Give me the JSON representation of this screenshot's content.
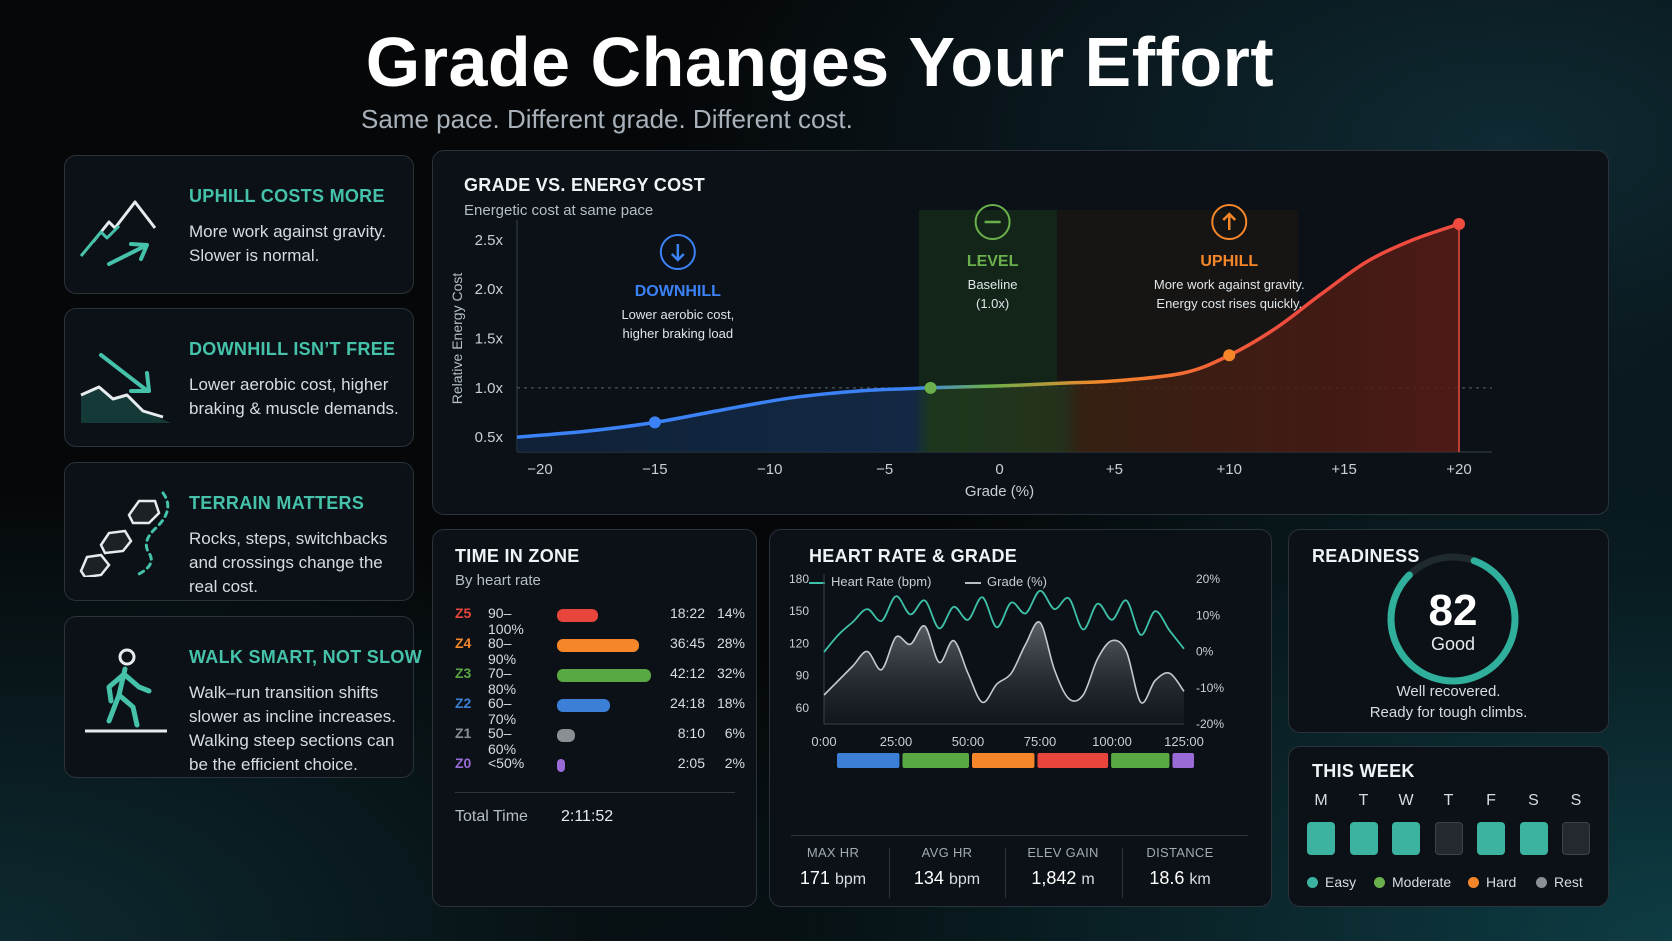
{
  "header": {
    "title": "Grade Changes Your Effort",
    "subtitle": "Same pace. Different grade. Different cost."
  },
  "tips": [
    {
      "icon": "mountain-uphill-icon",
      "title": "UPHILL COSTS MORE",
      "body": "More work against gravity. Slower is normal."
    },
    {
      "icon": "downhill-slope-icon",
      "title": "DOWNHILL ISN’T FREE",
      "body": "Lower aerobic cost, higher braking & muscle demands."
    },
    {
      "icon": "rocks-path-icon",
      "title": "TERRAIN MATTERS",
      "body": "Rocks, steps, switchbacks and crossings change the real cost."
    },
    {
      "icon": "walking-person-icon",
      "title": "WALK SMART, NOT SLOW",
      "body": "Walk–run transition shifts slower as incline increases. Walking steep sections can be the efficient choice."
    }
  ],
  "colors": {
    "accent": "#45c2a9",
    "downhill": "#3b82f6",
    "level": "#6ab04c",
    "uphill": "#f5872a",
    "steep": "#ef4b3f"
  },
  "chart_data": [
    {
      "type": "line",
      "title": "GRADE VS. ENERGY COST",
      "subtitle": "Energetic cost at same pace",
      "xlabel": "Grade (%)",
      "ylabel": "Relative Energy Cost",
      "x_ticks": [
        "−20",
        "−15",
        "−10",
        "−5",
        "0",
        "+5",
        "+10",
        "+15",
        "+20"
      ],
      "y_ticks": [
        "0.5x",
        "1.0x",
        "1.5x",
        "2.0x",
        "2.5x"
      ],
      "xlim": [
        -21,
        21
      ],
      "ylim": [
        0.35,
        2.65
      ],
      "reference_line": 1.0,
      "series": [
        {
          "x": [
            -21,
            -18,
            -15,
            -12,
            -9,
            -6,
            -3,
            0,
            3,
            5,
            8,
            10,
            12,
            14,
            16,
            18,
            20
          ],
          "y": [
            0.5,
            0.56,
            0.65,
            0.78,
            0.9,
            0.97,
            1.0,
            1.02,
            1.05,
            1.07,
            1.15,
            1.33,
            1.6,
            1.95,
            2.28,
            2.5,
            2.66
          ]
        }
      ],
      "highlight_points": [
        {
          "x": -15,
          "y": 0.65
        },
        {
          "x": -3,
          "y": 1.0
        },
        {
          "x": 10,
          "y": 1.33
        },
        {
          "x": 20,
          "y": 2.66
        }
      ],
      "regions": [
        {
          "label": "DOWNHILL",
          "text": [
            "Lower aerobic cost,",
            "higher braking load"
          ],
          "icon": "arrow-down-icon"
        },
        {
          "label": "LEVEL",
          "text": [
            "Baseline",
            "(1.0x)"
          ],
          "icon": "minus-icon"
        },
        {
          "label": "UPHILL",
          "text": [
            "More work against gravity.",
            "Energy cost rises quickly."
          ],
          "icon": "arrow-up-icon"
        }
      ]
    },
    {
      "type": "bar",
      "title": "TIME IN ZONE",
      "subtitle": "By heart rate",
      "rows": [
        {
          "zone": "Z5",
          "range": "90–100%",
          "time": "18:22",
          "pct": "14%",
          "value": 14,
          "color": "#e8453c"
        },
        {
          "zone": "Z4",
          "range": "80–90%",
          "time": "36:45",
          "pct": "28%",
          "value": 28,
          "color": "#f5872a"
        },
        {
          "zone": "Z3",
          "range": "70–80%",
          "time": "42:12",
          "pct": "32%",
          "value": 32,
          "color": "#5aa844"
        },
        {
          "zone": "Z2",
          "range": "60–70%",
          "time": "24:18",
          "pct": "18%",
          "value": 18,
          "color": "#3b7fd6"
        },
        {
          "zone": "Z1",
          "range": "50–60%",
          "time": "8:10",
          "pct": "6%",
          "value": 6,
          "color": "#8a8f94"
        },
        {
          "zone": "Z0",
          "range": "<50%",
          "time": "2:05",
          "pct": "2%",
          "value": 2,
          "color": "#9a6ad6"
        }
      ],
      "total_label": "Total Time",
      "total_value": "2:11:52"
    },
    {
      "type": "line",
      "title": "HEART RATE & GRADE",
      "legend": [
        "Heart Rate (bpm)",
        "Grade (%)"
      ],
      "x_ticks": [
        "0:00",
        "25:00",
        "50:00",
        "75:00",
        "100:00",
        "125:00"
      ],
      "y_ticks_left": [
        "180",
        "150",
        "120",
        "90",
        "60"
      ],
      "y_ticks_right": [
        "20%",
        "10%",
        "0%",
        "-10%",
        "-20%"
      ],
      "xlim": [
        0,
        125
      ],
      "ylim_left": [
        45,
        180
      ],
      "ylim_right": [
        -20,
        20
      ],
      "series": [
        {
          "name": "Heart Rate (bpm)",
          "x": [
            0,
            5,
            10,
            15,
            20,
            25,
            30,
            35,
            40,
            45,
            50,
            55,
            60,
            65,
            70,
            75,
            80,
            85,
            90,
            95,
            100,
            105,
            110,
            115,
            120,
            125
          ],
          "y": [
            112,
            128,
            140,
            152,
            141,
            164,
            147,
            160,
            134,
            154,
            142,
            163,
            135,
            158,
            148,
            169,
            152,
            162,
            133,
            157,
            142,
            160,
            128,
            150,
            132,
            115
          ]
        },
        {
          "name": "Grade (%)",
          "x": [
            0,
            5,
            10,
            15,
            20,
            25,
            30,
            35,
            40,
            45,
            50,
            55,
            60,
            65,
            70,
            75,
            80,
            85,
            90,
            95,
            100,
            105,
            110,
            115,
            120,
            125
          ],
          "y": [
            -12,
            -8,
            -4,
            0,
            -5,
            4,
            2,
            7,
            -3,
            3,
            -6,
            -14,
            -9,
            -6,
            2,
            8,
            -5,
            -13,
            -12,
            -2,
            3,
            0,
            -14,
            -8,
            -6,
            -11
          ]
        }
      ],
      "zone_strip": [
        {
          "color": "#3b7fd6",
          "value": 16
        },
        {
          "color": "#5aa844",
          "value": 17
        },
        {
          "color": "#f5872a",
          "value": 16
        },
        {
          "color": "#e8453c",
          "value": 18
        },
        {
          "color": "#5aa844",
          "value": 15
        },
        {
          "color": "#9a6ad6",
          "value": 6
        }
      ],
      "stats": [
        {
          "label": "MAX HR",
          "value": "171",
          "unit": "bpm"
        },
        {
          "label": "AVG HR",
          "value": "134",
          "unit": "bpm"
        },
        {
          "label": "ELEV GAIN",
          "value": "1,842",
          "unit": "m"
        },
        {
          "label": "DISTANCE",
          "value": "18.6",
          "unit": "km"
        }
      ]
    }
  ],
  "readiness": {
    "title": "READINESS",
    "score": "82",
    "score_value": 82,
    "status": "Good",
    "line1": "Well recovered.",
    "line2": "Ready for tough climbs."
  },
  "week": {
    "title": "THIS WEEK",
    "days": [
      {
        "label": "M",
        "type": "Easy"
      },
      {
        "label": "T",
        "type": "Easy"
      },
      {
        "label": "W",
        "type": "Easy"
      },
      {
        "label": "T",
        "type": "Rest"
      },
      {
        "label": "F",
        "type": "Easy"
      },
      {
        "label": "S",
        "type": "Easy"
      },
      {
        "label": "S",
        "type": "Rest"
      }
    ],
    "legend": [
      {
        "label": "Easy",
        "color": "#3bb3a0"
      },
      {
        "label": "Moderate",
        "color": "#6ab04c"
      },
      {
        "label": "Hard",
        "color": "#f5872a"
      },
      {
        "label": "Rest",
        "color": "#8a9096"
      }
    ]
  }
}
